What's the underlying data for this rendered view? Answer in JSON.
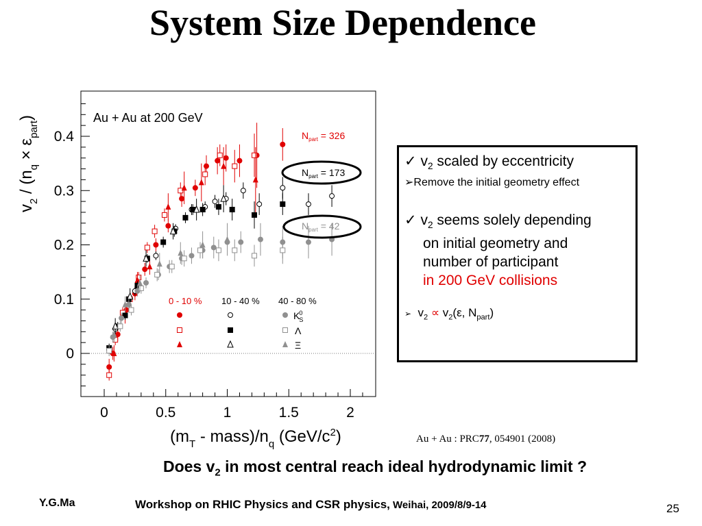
{
  "slide": {
    "title": "System Size Dependence",
    "citation_pre": "Au + Au : PRC",
    "citation_vol": "77",
    "citation_post": ", 054901 (2008)",
    "question_pre": "Does v",
    "question_sub": "2",
    "question_post": " in most central reach ideal hydrodynamic limit ?",
    "author": "Y.G.Ma",
    "workshop_main": "Workshop on RHIC Physics and CSR physics,",
    "workshop_tail": " Weihai, 2009/8/9-14",
    "page_number": "25"
  },
  "bullets": {
    "b1_check": "✓",
    "b1_pre": " v",
    "b1_sub": "2",
    "b1_post": " scaled by eccentricity",
    "b2_arrow": "➢",
    "b2_text": "Remove the initial  geometry effect",
    "b3_check": "✓",
    "b3_pre": " v",
    "b3_sub": "2",
    "b3_post": " seems solely depending",
    "b3_line2": "on initial geometry and",
    "b3_line3": "number of participant",
    "b3_line4": "in 200 GeV collisions",
    "b4_arrow": "➢",
    "b4_v": "v",
    "b4_sub1": "2",
    "b4_prop": " ∝ ",
    "b4_v2": "v",
    "b4_sub2": "2",
    "b4_open": "(ε, N",
    "b4_sub3": "part",
    "b4_close": ")"
  },
  "colors": {
    "central": "#e00000",
    "mid": "#000000",
    "peripheral": "#909090",
    "text_red": "#e00000"
  },
  "chart_data": {
    "type": "scatter",
    "xlabel": "(mT - mass)/nq (GeV/c2)",
    "ylabel": "v2 / (nq × εpart)",
    "xlim": [
      -0.15,
      2.2
    ],
    "ylim": [
      -0.08,
      0.48
    ],
    "x_ticks": [
      "0",
      "0.5",
      "1",
      "1.5",
      "2"
    ],
    "y_ticks": [
      "0",
      "0.1",
      "0.2",
      "0.3",
      "0.4"
    ],
    "annotation": "Au + Au at 200 GeV",
    "npart_labels": [
      {
        "text": "N",
        "sub": "part",
        "value": " = 326"
      },
      {
        "text": "N",
        "sub": "part",
        "value": " = 173"
      },
      {
        "text": "N",
        "sub": "part",
        "value": " = 42"
      }
    ],
    "legend_headers": [
      "0 - 10 %",
      "10 - 40 %",
      "40 - 80 %"
    ],
    "legend_particles": [
      "K",
      "Λ",
      "Ξ"
    ],
    "legend_k_sup": "0",
    "legend_k_sub": "S",
    "series": [
      {
        "name": "0 - 10 % K0S",
        "marker": "circle-filled",
        "color": "#e00000",
        "x": [
          0.04,
          0.07,
          0.11,
          0.18,
          0.25,
          0.33,
          0.42,
          0.52,
          0.63,
          0.74,
          0.83,
          0.92,
          0.99,
          1.1,
          1.24,
          1.45
        ],
        "y": [
          -0.025,
          0.0,
          0.035,
          0.08,
          0.11,
          0.155,
          0.2,
          0.235,
          0.285,
          0.305,
          0.345,
          0.355,
          0.36,
          0.355,
          0.365,
          0.385
        ],
        "err": [
          0.015,
          0.012,
          0.012,
          0.012,
          0.012,
          0.012,
          0.012,
          0.012,
          0.015,
          0.015,
          0.02,
          0.025,
          0.025,
          0.03,
          0.06,
          0.03
        ]
      },
      {
        "name": "0 - 10 % Λ",
        "marker": "square-open",
        "color": "#e00000",
        "x": [
          0.04,
          0.09,
          0.15,
          0.21,
          0.28,
          0.35,
          0.41,
          0.49,
          0.62,
          0.82,
          0.94,
          1.06,
          1.22
        ],
        "y": [
          -0.04,
          0.025,
          0.075,
          0.1,
          0.14,
          0.195,
          0.225,
          0.255,
          0.3,
          0.33,
          0.365,
          0.345,
          0.365
        ],
        "err": [
          0.01,
          0.01,
          0.01,
          0.01,
          0.01,
          0.01,
          0.012,
          0.012,
          0.015,
          0.02,
          0.02,
          0.03,
          0.04
        ]
      },
      {
        "name": "0 - 10 % Ξ",
        "marker": "triangle-filled",
        "color": "#e00000",
        "x": [
          0.08,
          0.17,
          0.27,
          0.37,
          0.52,
          0.65,
          0.79,
          0.97,
          1.23
        ],
        "y": [
          0.0,
          0.07,
          0.135,
          0.16,
          0.27,
          0.305,
          0.315,
          0.345,
          0.32
        ],
        "err": [
          0.015,
          0.015,
          0.015,
          0.015,
          0.025,
          0.03,
          0.035,
          0.035,
          0.06
        ]
      },
      {
        "name": "10 - 40 % K0S",
        "marker": "circle-open",
        "color": "#000000",
        "x": [
          0.09,
          0.25,
          0.42,
          0.58,
          0.71,
          0.82,
          0.9,
          0.99,
          1.13,
          1.26,
          1.45,
          1.66,
          1.85
        ],
        "y": [
          0.045,
          0.115,
          0.18,
          0.23,
          0.265,
          0.27,
          0.28,
          0.285,
          0.3,
          0.275,
          0.305,
          0.275,
          0.29
        ],
        "err": [
          0.008,
          0.008,
          0.008,
          0.008,
          0.01,
          0.01,
          0.012,
          0.012,
          0.015,
          0.02,
          0.02,
          0.02,
          0.02
        ]
      },
      {
        "name": "10 - 40 % Λ",
        "marker": "square-filled",
        "color": "#000000",
        "x": [
          0.04,
          0.11,
          0.17,
          0.2,
          0.27,
          0.35,
          0.48,
          0.57,
          0.66,
          0.72,
          0.8,
          0.93,
          1.04,
          1.22,
          1.45
        ],
        "y": [
          0.01,
          0.05,
          0.07,
          0.1,
          0.125,
          0.175,
          0.205,
          0.225,
          0.25,
          0.265,
          0.265,
          0.27,
          0.265,
          0.255,
          0.275
        ],
        "err": [
          0.008,
          0.008,
          0.008,
          0.008,
          0.008,
          0.008,
          0.01,
          0.01,
          0.01,
          0.01,
          0.012,
          0.015,
          0.02,
          0.025,
          0.02
        ]
      },
      {
        "name": "10 - 40 % Ξ",
        "marker": "triangle-open",
        "color": "#000000",
        "x": [
          0.09,
          0.21,
          0.34,
          0.56,
          0.75,
          0.97
        ],
        "y": [
          0.05,
          0.105,
          0.175,
          0.225,
          0.265,
          0.285
        ],
        "err": [
          0.015,
          0.015,
          0.015,
          0.015,
          0.02,
          0.025
        ]
      },
      {
        "name": "40 - 80 % K0S",
        "marker": "circle-filled",
        "color": "#909090",
        "x": [
          0.07,
          0.14,
          0.2,
          0.27,
          0.34,
          0.44,
          0.53,
          0.63,
          0.71,
          0.8,
          0.89,
          1.0,
          1.11,
          1.27,
          1.45,
          1.66,
          1.85
        ],
        "y": [
          0.03,
          0.065,
          0.09,
          0.115,
          0.13,
          0.145,
          0.16,
          0.175,
          0.18,
          0.19,
          0.195,
          0.205,
          0.205,
          0.21,
          0.205,
          0.205,
          0.21
        ],
        "err": [
          0.01,
          0.01,
          0.01,
          0.01,
          0.01,
          0.01,
          0.012,
          0.012,
          0.015,
          0.015,
          0.02,
          0.02,
          0.02,
          0.03,
          0.03,
          0.03,
          0.03
        ]
      },
      {
        "name": "40 - 80 % Λ",
        "marker": "square-open",
        "color": "#909090",
        "x": [
          0.04,
          0.13,
          0.22,
          0.3,
          0.43,
          0.55,
          0.65,
          0.78,
          0.93,
          1.06,
          1.22,
          1.45
        ],
        "y": [
          0.005,
          0.05,
          0.08,
          0.12,
          0.145,
          0.16,
          0.175,
          0.19,
          0.19,
          0.19,
          0.18,
          0.19
        ],
        "err": [
          0.01,
          0.01,
          0.01,
          0.01,
          0.012,
          0.012,
          0.015,
          0.015,
          0.02,
          0.02,
          0.02,
          0.025
        ]
      },
      {
        "name": "40 - 80 % Ξ",
        "marker": "triangle-filled",
        "color": "#909090",
        "x": [
          0.08,
          0.17,
          0.29,
          0.45,
          0.62,
          0.8,
          1.0
        ],
        "y": [
          0.035,
          0.09,
          0.13,
          0.165,
          0.185,
          0.2,
          0.21
        ],
        "err": [
          0.015,
          0.015,
          0.015,
          0.02,
          0.02,
          0.025,
          0.03
        ]
      }
    ]
  }
}
